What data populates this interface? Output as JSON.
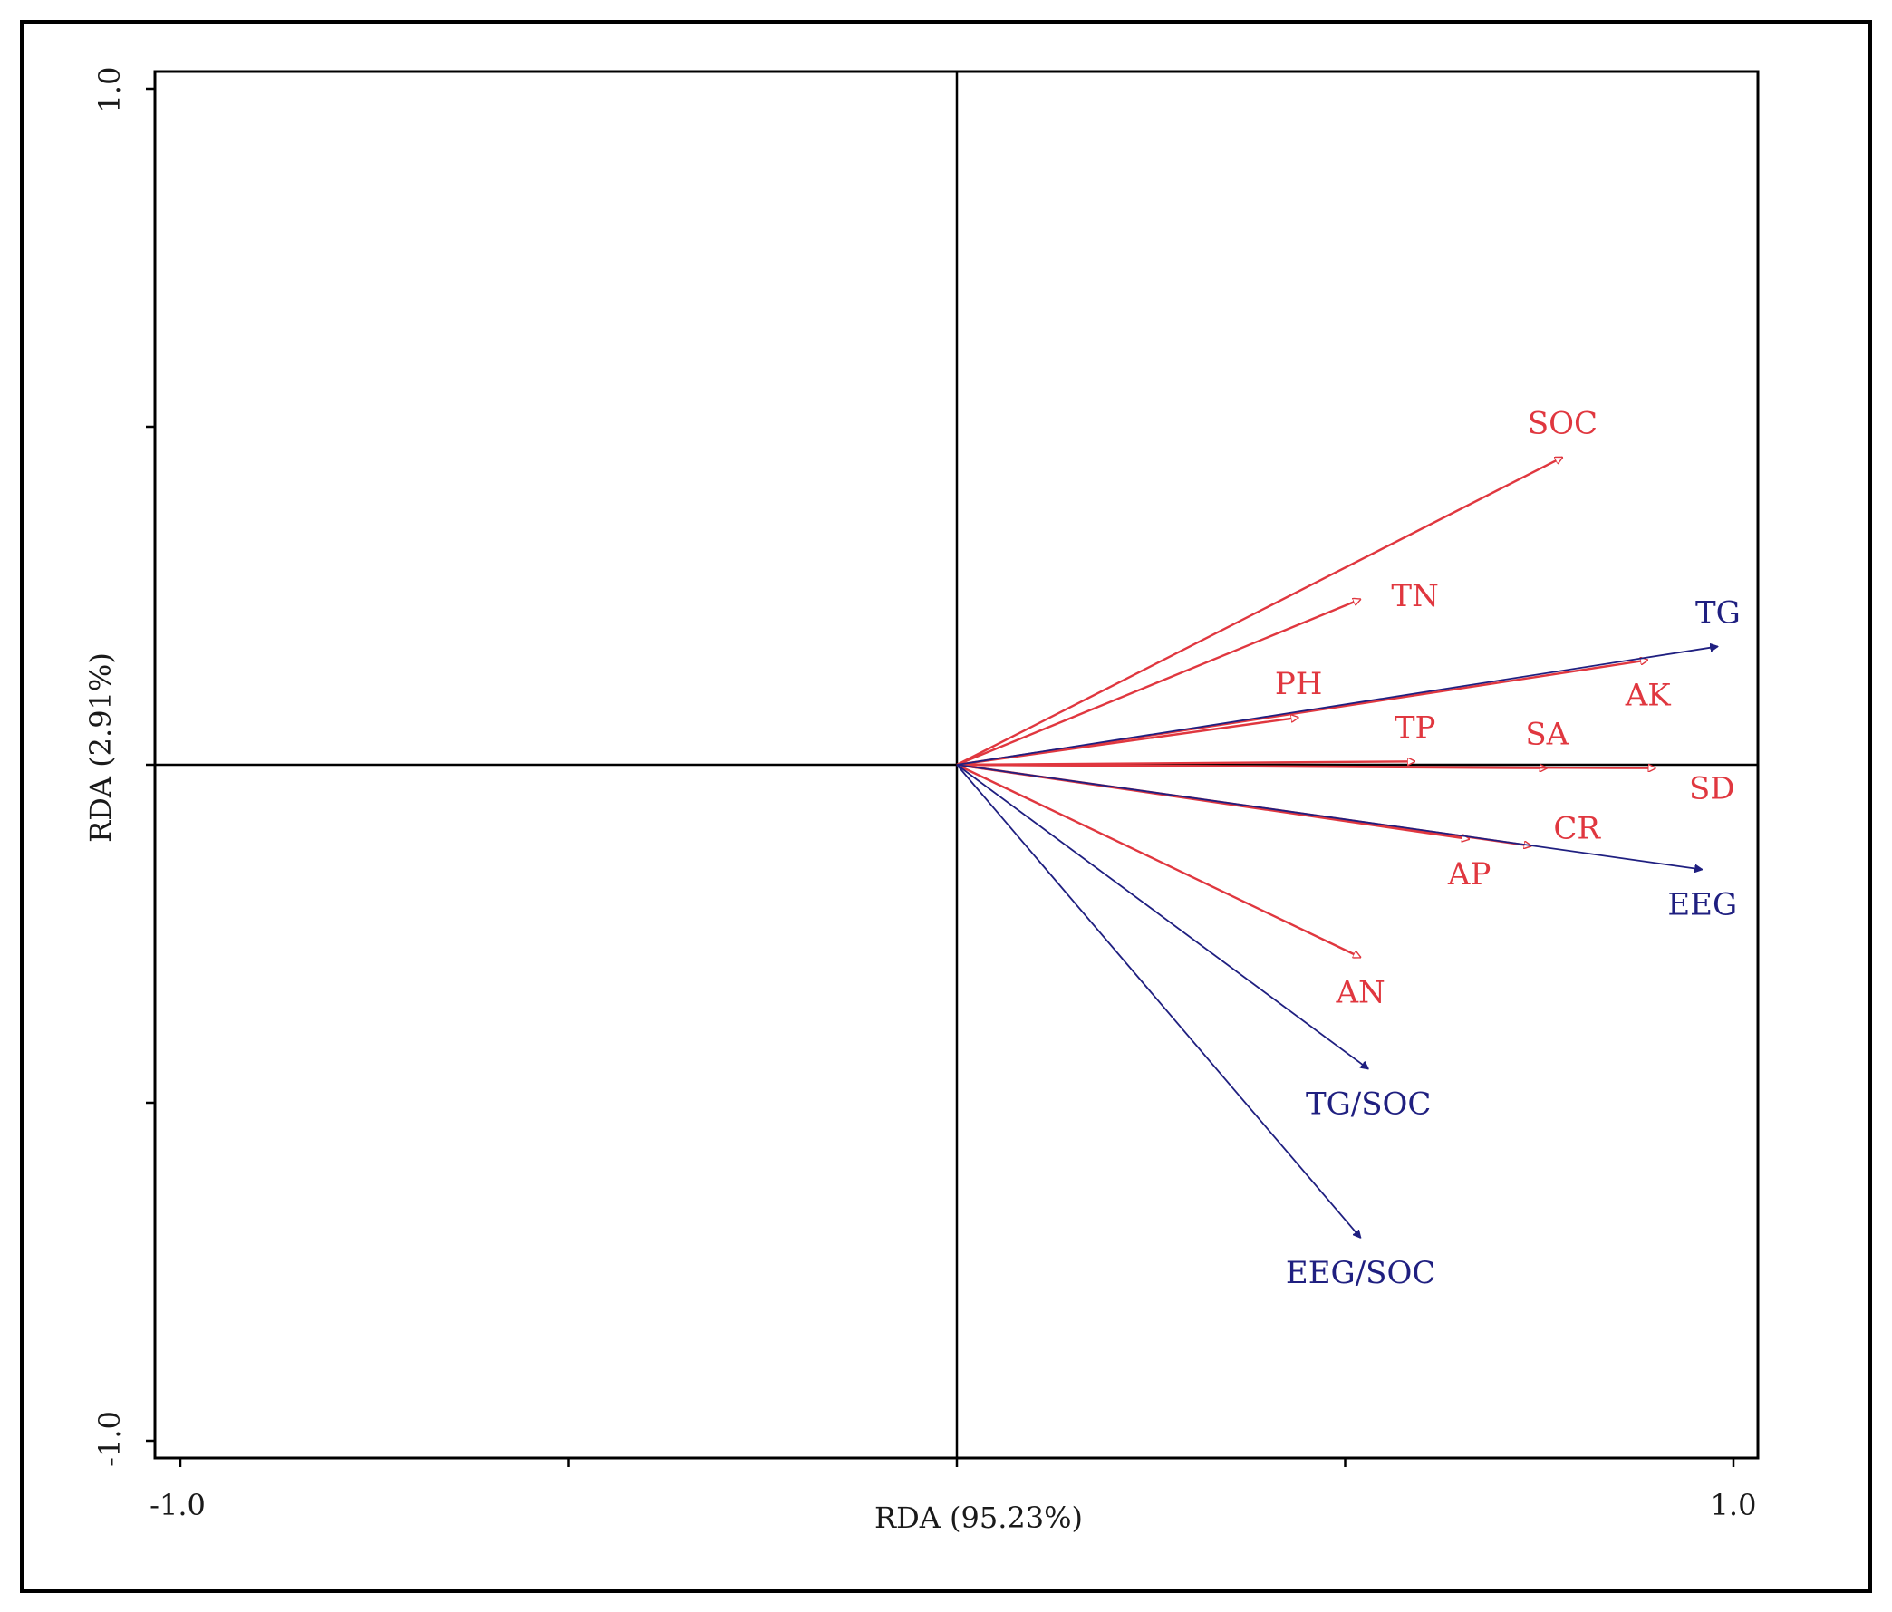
{
  "chart_data": {
    "type": "biplot",
    "title": "",
    "xlabel": "RDA (95.23%)",
    "ylabel": "RDA (2.91%)",
    "xlim": [
      -1.0,
      1.0
    ],
    "ylim": [
      -1.0,
      1.0
    ],
    "x_ticks": [
      -1.0,
      -0.5,
      0.0,
      0.5,
      1.0
    ],
    "y_ticks": [
      -1.0,
      -0.5,
      0.0,
      0.5,
      1.0
    ],
    "x_tick_labels": [
      {
        "value": -1.0,
        "text": "-1.0"
      },
      {
        "value": 1.0,
        "text": "1.0"
      }
    ],
    "y_tick_labels": [
      {
        "value": 1.0,
        "text": "1.0"
      },
      {
        "value": -1.0,
        "text": "-1.0"
      }
    ],
    "colors": {
      "environmental": "#e0373f",
      "response": "#1f1f80",
      "axes": "#000000"
    },
    "series": [
      {
        "name": "environmental",
        "color": "#e0373f",
        "arrow_style": "hollow",
        "vectors": [
          {
            "label": "SOC",
            "x": 0.78,
            "y": 0.455,
            "label_pos": "above"
          },
          {
            "label": "TN",
            "x": 0.52,
            "y": 0.245,
            "label_pos": "right"
          },
          {
            "label": "PH",
            "x": 0.44,
            "y": 0.07,
            "label_pos": "above"
          },
          {
            "label": "AK",
            "x": 0.89,
            "y": 0.155,
            "label_pos": "below"
          },
          {
            "label": "TP",
            "x": 0.59,
            "y": 0.005,
            "label_pos": "above"
          },
          {
            "label": "SA",
            "x": 0.76,
            "y": -0.005,
            "label_pos": "above"
          },
          {
            "label": "SD",
            "x": 0.9,
            "y": -0.005,
            "label_pos": "below-right"
          },
          {
            "label": "CR",
            "x": 0.74,
            "y": -0.12,
            "label_pos": "above-right"
          },
          {
            "label": "AP",
            "x": 0.66,
            "y": -0.11,
            "label_pos": "below"
          },
          {
            "label": "AN",
            "x": 0.52,
            "y": -0.285,
            "label_pos": "below"
          }
        ]
      },
      {
        "name": "response",
        "color": "#1f1f80",
        "arrow_style": "filled",
        "vectors": [
          {
            "label": "TG",
            "x": 0.98,
            "y": 0.175,
            "label_pos": "above"
          },
          {
            "label": "EEG",
            "x": 0.96,
            "y": -0.155,
            "label_pos": "below"
          },
          {
            "label": "TG/SOC",
            "x": 0.53,
            "y": -0.45,
            "label_pos": "below"
          },
          {
            "label": "EEG/SOC",
            "x": 0.52,
            "y": -0.7,
            "label_pos": "below"
          }
        ]
      }
    ]
  }
}
